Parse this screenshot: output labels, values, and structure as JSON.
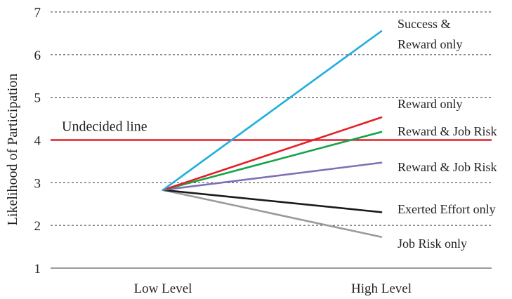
{
  "chart_data": {
    "type": "line",
    "title": "",
    "xlabel": "",
    "ylabel": "Likelihood of Participation",
    "categories": [
      "Low Level",
      "High Level"
    ],
    "ylim": [
      1,
      7
    ],
    "yticks": [
      1,
      2,
      3,
      4,
      5,
      6,
      7
    ],
    "grid": true,
    "reference_line": {
      "label": "Undecided line",
      "value": 4,
      "color": "#e41e26"
    },
    "series": [
      {
        "name": "Success & Reward only",
        "label_lines": [
          "Success &",
          "Reward only"
        ],
        "values": [
          2.83,
          6.55
        ],
        "color": "#1eaee0"
      },
      {
        "name": "Reward only",
        "label_lines": [
          "Reward only"
        ],
        "values": [
          2.83,
          4.53
        ],
        "color": "#e41e26"
      },
      {
        "name": "Reward & Job Risk",
        "label_lines": [
          "Reward & Job Risk"
        ],
        "values": [
          2.83,
          4.19
        ],
        "color": "#16a34a"
      },
      {
        "name": "Reward & Job Risk",
        "label_lines": [
          "Reward & Job Risk"
        ],
        "values": [
          2.83,
          3.47
        ],
        "color": "#7f6fb5"
      },
      {
        "name": "Exerted Effort only",
        "label_lines": [
          "Exerted Effort only"
        ],
        "values": [
          2.83,
          2.31
        ],
        "color": "#1a1a1a"
      },
      {
        "name": "Job Risk only",
        "label_lines": [
          "Job Risk only"
        ],
        "values": [
          2.83,
          1.73
        ],
        "color": "#9a9a9a"
      }
    ]
  }
}
